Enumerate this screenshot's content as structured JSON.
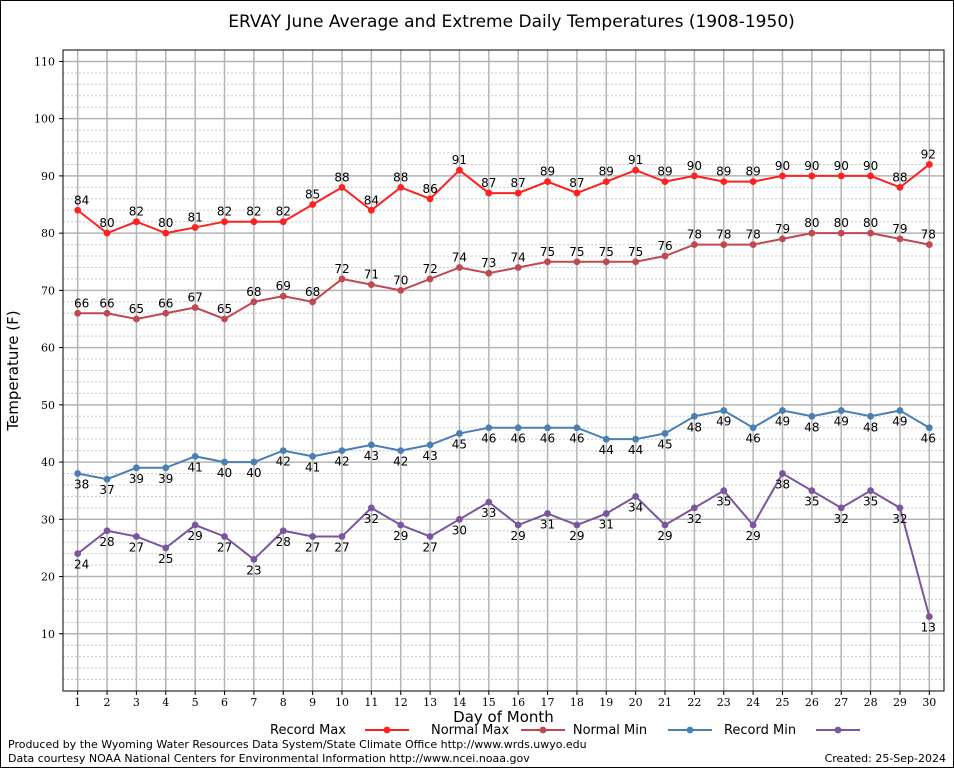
{
  "chart_data": {
    "type": "line",
    "title": "ERVAY June Average and Extreme Daily Temperatures (1908-1950)",
    "xlabel": "Day of Month",
    "ylabel": "Temperature (F)",
    "x": [
      1,
      2,
      3,
      4,
      5,
      6,
      7,
      8,
      9,
      10,
      11,
      12,
      13,
      14,
      15,
      16,
      17,
      18,
      19,
      20,
      21,
      22,
      23,
      24,
      25,
      26,
      27,
      28,
      29,
      30
    ],
    "xlim": [
      0.5,
      30.5
    ],
    "ylim": [
      0,
      112
    ],
    "yticks": [
      10,
      20,
      30,
      40,
      50,
      60,
      70,
      80,
      90,
      100,
      110
    ],
    "grid": true,
    "legend_position": "bottom",
    "series": [
      {
        "name": "Record Max",
        "color": "#ff2020",
        "label_position": "above",
        "values": [
          84,
          80,
          82,
          80,
          81,
          82,
          82,
          82,
          85,
          88,
          84,
          88,
          86,
          91,
          87,
          87,
          89,
          87,
          89,
          91,
          89,
          90,
          89,
          89,
          90,
          90,
          90,
          90,
          88,
          92
        ]
      },
      {
        "name": "Normal Max",
        "color": "#c04850",
        "label_position": "above",
        "values": [
          66,
          66,
          65,
          66,
          67,
          65,
          68,
          69,
          68,
          72,
          71,
          70,
          72,
          74,
          73,
          74,
          75,
          75,
          75,
          75,
          76,
          78,
          78,
          78,
          79,
          80,
          80,
          80,
          79,
          78
        ]
      },
      {
        "name": "Normal Min",
        "color": "#4a7fb5",
        "label_position": "below",
        "values": [
          38,
          37,
          39,
          39,
          41,
          40,
          40,
          42,
          41,
          42,
          43,
          42,
          43,
          45,
          46,
          46,
          46,
          46,
          44,
          44,
          45,
          48,
          49,
          46,
          49,
          48,
          49,
          48,
          49,
          46
        ]
      },
      {
        "name": "Record Min",
        "color": "#7a55a0",
        "label_position": "below",
        "values": [
          24,
          28,
          27,
          25,
          29,
          27,
          23,
          28,
          27,
          27,
          32,
          29,
          27,
          30,
          33,
          29,
          31,
          29,
          31,
          34,
          29,
          32,
          35,
          29,
          38,
          35,
          32,
          35,
          32,
          13
        ]
      }
    ]
  },
  "footer": {
    "produced_by": "Produced by the Wyoming Water Resources Data System/State Climate Office http://www.wrds.uwyo.edu",
    "data_courtesy": "Data courtesy NOAA National Centers for Environmental Information http://www.ncei.noaa.gov",
    "created": "Created:  25-Sep-2024"
  }
}
